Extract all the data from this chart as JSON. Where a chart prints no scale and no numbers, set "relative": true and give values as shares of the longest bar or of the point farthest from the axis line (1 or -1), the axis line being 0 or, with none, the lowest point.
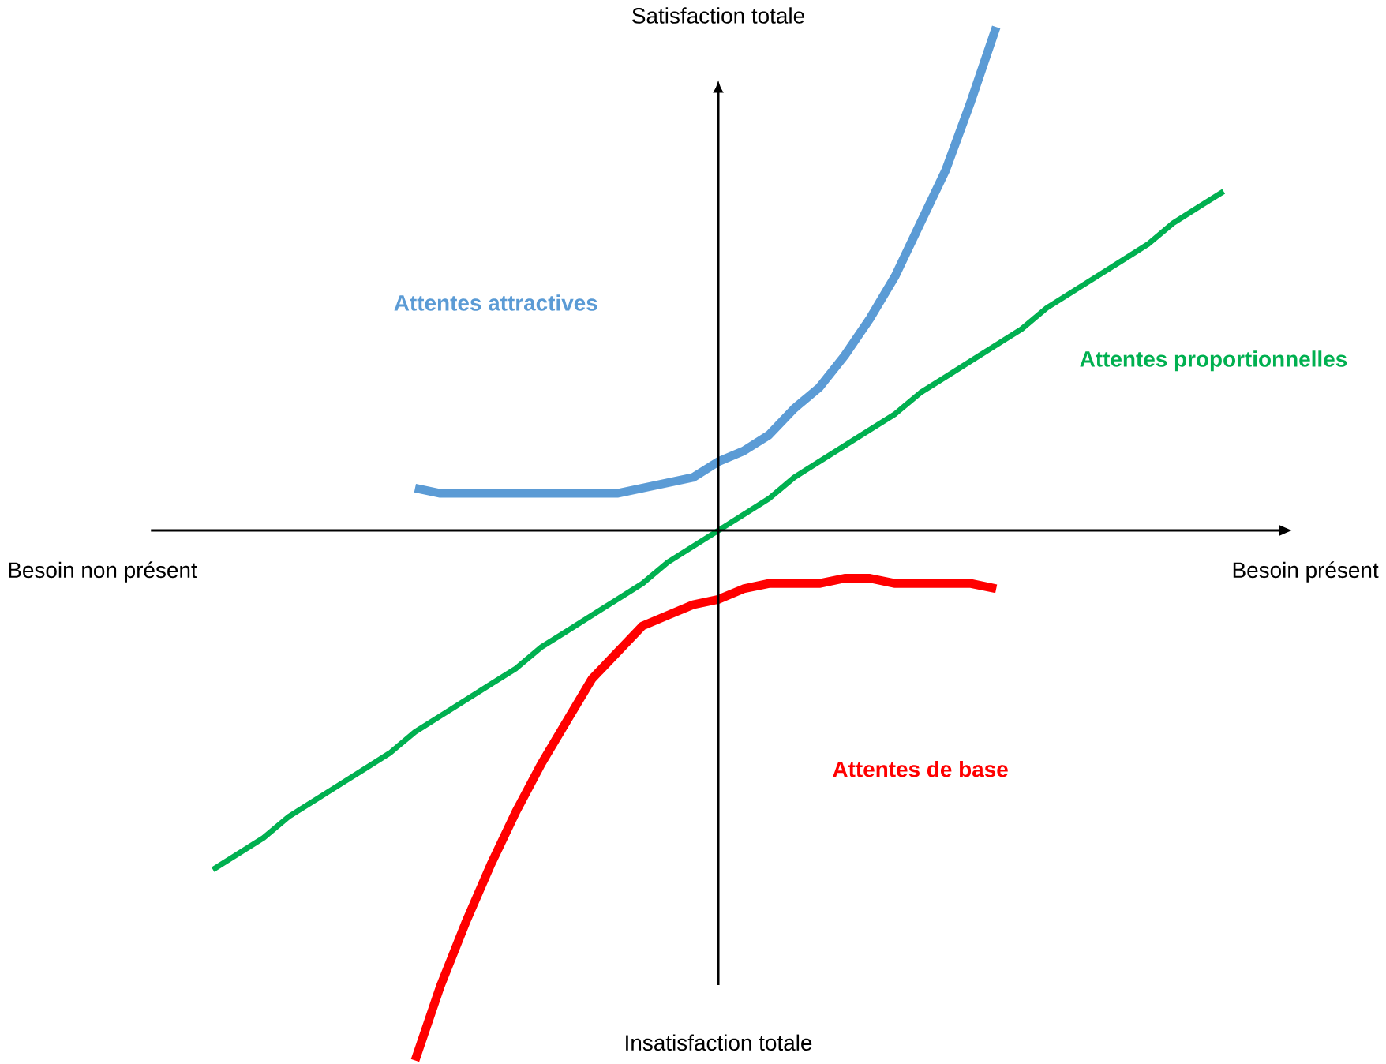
{
  "chart_data": {
    "type": "line",
    "relative": true,
    "xlabel": "Besoin présent",
    "ylabel": "Satisfaction totale",
    "annotations": [
      "Besoin non présent",
      "Insatisfaction totale"
    ],
    "categories": [
      null,
      null,
      null,
      null,
      null,
      null,
      null,
      null,
      null,
      null,
      null,
      null,
      null,
      null,
      null,
      null,
      null,
      null,
      null,
      null,
      null,
      null,
      null,
      null,
      null,
      null,
      null,
      null,
      null,
      null,
      null,
      null,
      null,
      null,
      null,
      null,
      null,
      null,
      null,
      null,
      null
    ],
    "series": [
      {
        "name": "Attentes attractives",
        "color": "#5b9bd5",
        "values": [
          null,
          null,
          null,
          null,
          null,
          null,
          null,
          null,
          0.08,
          0.07,
          0.07,
          0.07,
          0.07,
          0.07,
          0.07,
          0.07,
          0.07,
          0.08,
          0.09,
          0.1,
          0.13,
          0.15,
          0.18,
          0.23,
          0.27,
          0.33,
          0.4,
          0.48,
          0.58,
          0.68,
          0.81,
          0.95,
          null,
          null,
          null,
          null,
          null,
          null,
          null,
          null,
          null
        ]
      },
      {
        "name": "Attentes proportionnelles",
        "color": "#00b050",
        "values": [
          -0.64,
          -0.61,
          -0.58,
          -0.54,
          -0.51,
          -0.48,
          -0.45,
          -0.42,
          -0.38,
          -0.35,
          -0.32,
          -0.29,
          -0.26,
          -0.22,
          -0.19,
          -0.16,
          -0.13,
          -0.1,
          -0.06,
          -0.03,
          0,
          0.03,
          0.06,
          0.1,
          0.13,
          0.16,
          0.19,
          0.22,
          0.26,
          0.29,
          0.32,
          0.35,
          0.38,
          0.42,
          0.45,
          0.48,
          0.51,
          0.54,
          0.58,
          0.61,
          0.64
        ]
      },
      {
        "name": "Attentes de base",
        "color": "#ff0000",
        "values": [
          null,
          null,
          null,
          null,
          null,
          null,
          null,
          null,
          -1,
          -0.86,
          -0.74,
          -0.63,
          -0.53,
          -0.44,
          -0.36,
          -0.28,
          -0.23,
          -0.18,
          -0.16,
          -0.14,
          -0.13,
          -0.11,
          -0.1,
          -0.1,
          -0.1,
          -0.09,
          -0.09,
          -0.1,
          -0.1,
          -0.1,
          -0.1,
          -0.11,
          null,
          null,
          null,
          null,
          null,
          null,
          null,
          null,
          null
        ]
      }
    ]
  }
}
